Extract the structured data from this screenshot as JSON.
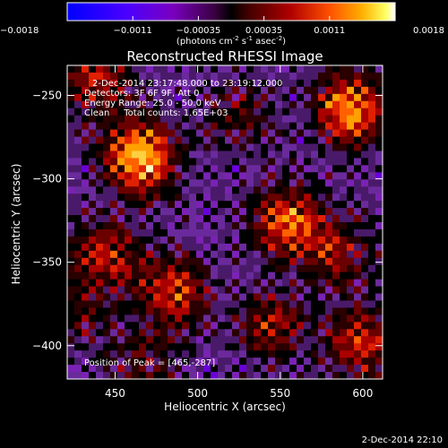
{
  "chart_data": {
    "type": "heatmap",
    "title": "Reconstructed RHESSI Image",
    "xlabel": "Heliocentric X (arcsec)",
    "ylabel": "Heliocentric Y (arcsec)",
    "xlim": [
      421,
      612
    ],
    "ylim": [
      -420,
      -232
    ],
    "xticks": [
      450,
      500,
      550,
      600
    ],
    "yticks": [
      -250,
      -300,
      -350,
      -400
    ],
    "colorbar": {
      "min": -0.0018,
      "max": 0.0018,
      "ticks": [
        "-0.0018",
        "-0.0011",
        "-0.00035",
        "0.00035",
        "0.0011",
        "0.0018"
      ],
      "label_main": "(photons cm",
      "label_exp1": "-2",
      "label_mid": " s",
      "label_exp2": "-1",
      "label_mid2": " asec",
      "label_exp3": "-2",
      "label_end": ")"
    },
    "annotations": {
      "time": "2-Dec-2014 23:17:48.000 to 23:19:12.000",
      "detectors": "Detectors: 3F 6F 9F, Att 0",
      "energy": "Energy Range: 25.0 - 50.0 keV",
      "clean": "Clean     Total counts: 1.65E+03",
      "peak": "Position of Peak = [465,-287]"
    },
    "peak": [
      465,
      -287
    ],
    "sources": [
      {
        "x": 465,
        "y": -287,
        "amp": 0.0018
      },
      {
        "x": 593,
        "y": -258,
        "amp": 0.0016
      },
      {
        "x": 555,
        "y": -325,
        "amp": 0.0014
      },
      {
        "x": 485,
        "y": -368,
        "amp": 0.0012
      },
      {
        "x": 445,
        "y": -345,
        "amp": 0.001
      },
      {
        "x": 545,
        "y": -388,
        "amp": 0.0009
      },
      {
        "x": 600,
        "y": -398,
        "amp": 0.0011
      },
      {
        "x": 438,
        "y": -240,
        "amp": 0.001
      },
      {
        "x": 525,
        "y": -262,
        "amp": 0.0006
      },
      {
        "x": 585,
        "y": -345,
        "amp": 0.0008
      },
      {
        "x": 465,
        "y": -412,
        "amp": 0.0006
      },
      {
        "x": 430,
        "y": -378,
        "amp": 0.0005
      }
    ],
    "colormap": [
      "#0000ff",
      "#3a00ff",
      "#6a00d8",
      "#7a22b4",
      "#6a2a9c",
      "#4a1a6a",
      "#000000",
      "#2a0000",
      "#6a0000",
      "#aa0000",
      "#e02000",
      "#ff6000",
      "#ffa000",
      "#ffd040",
      "#ffffc0",
      "#ffffff"
    ]
  },
  "footer": {
    "date": "2-Dec-2014 22:10"
  }
}
